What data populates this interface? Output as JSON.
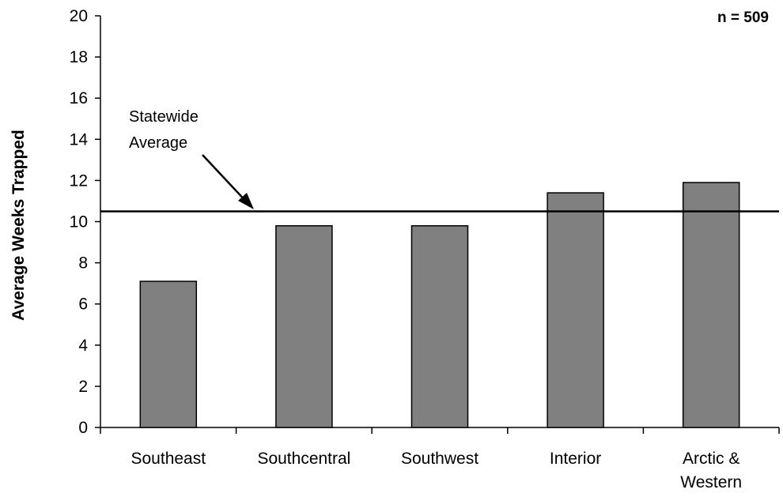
{
  "chart_data": {
    "type": "bar",
    "categories": [
      "Southeast",
      "Southcentral",
      "Southwest",
      "Interior",
      "Arctic & Western"
    ],
    "category_lines": [
      [
        "Southeast"
      ],
      [
        "Southcentral"
      ],
      [
        "Southwest"
      ],
      [
        "Interior"
      ],
      [
        "Arctic &",
        "Western"
      ]
    ],
    "values": [
      7.1,
      9.8,
      9.8,
      11.4,
      11.9
    ],
    "ylabel": "Average Weeks Trapped",
    "xlabel": "",
    "ylim": [
      0,
      20
    ],
    "yticks": [
      "0",
      "2",
      "4",
      "6",
      "8",
      "10",
      "12",
      "14",
      "16",
      "18",
      "20"
    ],
    "reference_line": {
      "value": 10.5,
      "label_lines": [
        "Statewide",
        "Average"
      ]
    },
    "sample_size_label": "n = 509",
    "bar_color": "#808080",
    "grid": false,
    "legend": "none"
  }
}
